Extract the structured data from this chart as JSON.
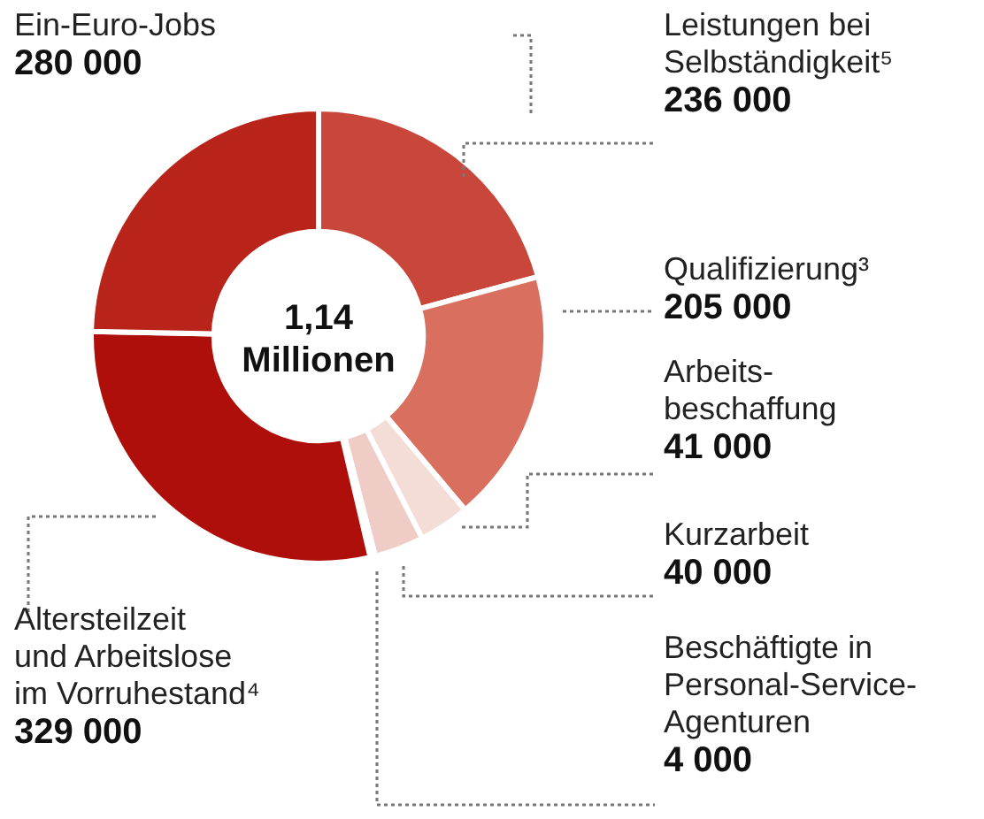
{
  "chart_data": {
    "type": "donut",
    "title": "1,14\nMillionen",
    "categories": [
      "Leistungen bei\nSelbständigkeit⁵",
      "Qualifizierung³",
      "Arbeits-\nbeschaffung",
      "Kurzarbeit",
      "Beschäftigte in\nPersonal-Service-\nAgenturen",
      "Altersteilzeit\nund Arbeitslose\nim Vorruhestand⁴",
      "Ein-Euro-Jobs"
    ],
    "values": [
      236000,
      205000,
      41000,
      40000,
      4000,
      329000,
      280000
    ],
    "value_labels": [
      "236 000",
      "205 000",
      "41 000",
      "40 000",
      "4 000",
      "329 000",
      "280 000"
    ],
    "colors": [
      "#c8473a",
      "#d9705f",
      "#f4dcd7",
      "#efcdc6",
      "#e8bdb4",
      "#ae0f0a",
      "#b8231a"
    ],
    "legend": false
  }
}
